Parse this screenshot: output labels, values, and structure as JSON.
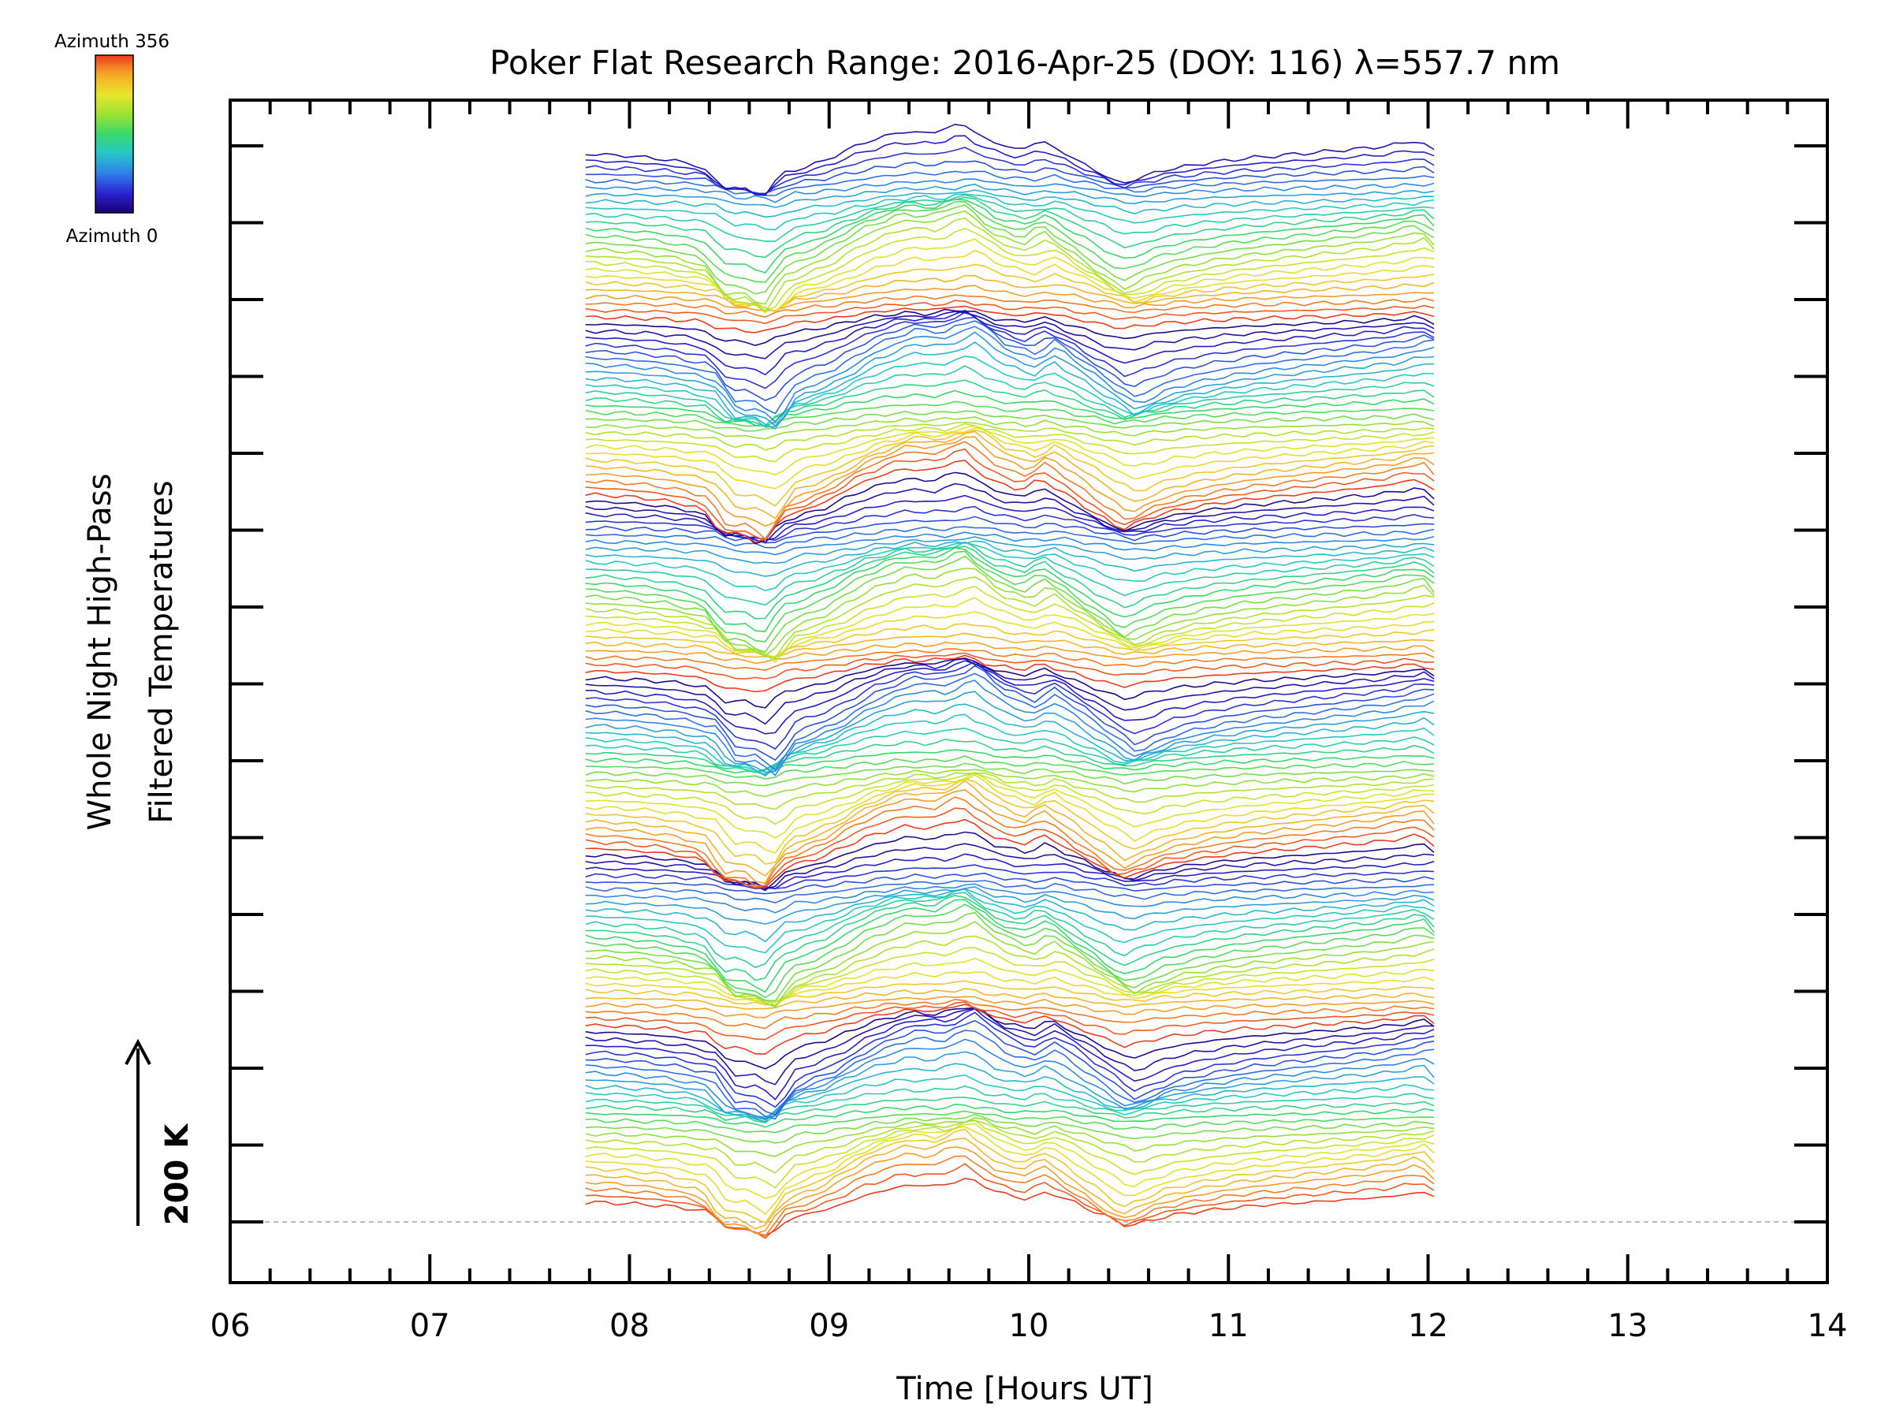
{
  "chart_data": {
    "type": "line",
    "title": "Poker Flat Research Range: 2016-Apr-25 (DOY: 116) λ=557.7 nm",
    "xlabel": "Time [Hours UT]",
    "ylabel_line1": "Whole Night High-Pass",
    "ylabel_line2": "Filtered Temperatures",
    "xlim": [
      6,
      14
    ],
    "x_ticks": [
      "06",
      "07",
      "08",
      "09",
      "10",
      "11",
      "12",
      "13",
      "14"
    ],
    "y_scale_label": "200 K",
    "colorbar": {
      "top_label": "Azimuth 356",
      "bottom_label": "Azimuth 0",
      "colors": [
        "#1a0070",
        "#2a1fd0",
        "#2f7fe8",
        "#26c8c8",
        "#39d86a",
        "#9be234",
        "#e8e62a",
        "#f6a628",
        "#ee3a1e"
      ]
    },
    "time_range": [
      7.78,
      12.05
    ],
    "template_x": [
      7.78,
      8.0,
      8.2,
      8.4,
      8.5,
      8.6,
      8.7,
      8.8,
      9.0,
      9.2,
      9.4,
      9.55,
      9.7,
      9.85,
      10.0,
      10.1,
      10.3,
      10.5,
      10.7,
      10.9,
      11.1,
      11.4,
      11.8,
      12.0,
      12.05
    ],
    "template_y": [
      0.0,
      -0.1,
      -0.3,
      -0.7,
      -2.0,
      -2.0,
      -2.6,
      -1.2,
      -0.5,
      0.6,
      1.3,
      1.2,
      1.8,
      0.7,
      0.2,
      0.8,
      -0.5,
      -1.8,
      -1.0,
      -0.6,
      -0.3,
      0.0,
      0.4,
      0.8,
      0.2
    ],
    "series_count": 155
  }
}
